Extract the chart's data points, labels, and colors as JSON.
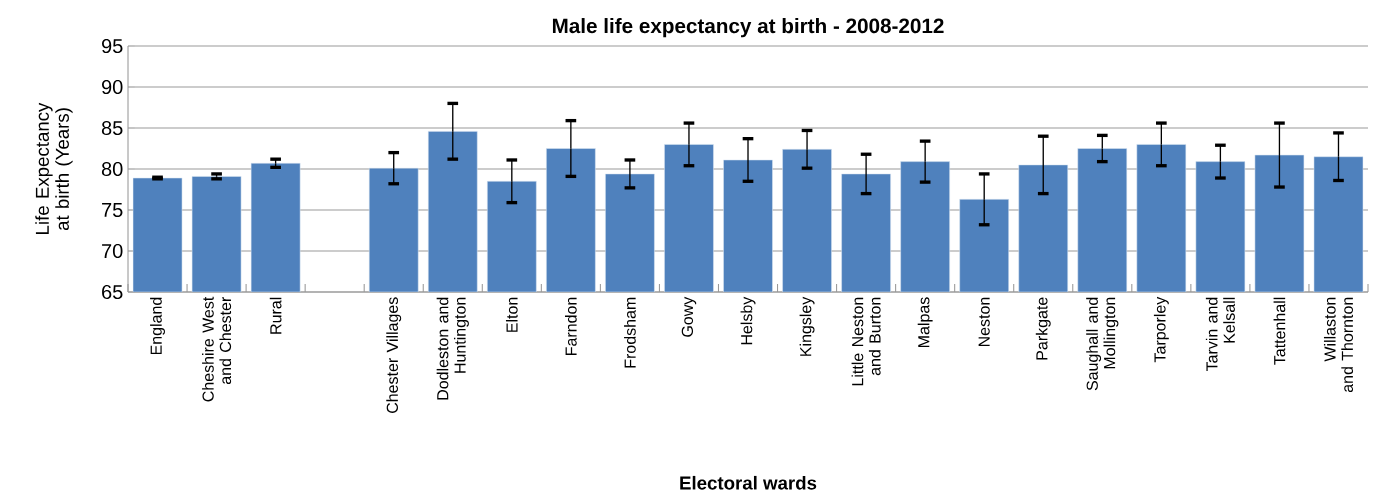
{
  "chart_data": {
    "type": "bar",
    "title": "Male life expectancy at birth - 2008-2012",
    "xlabel": "Electoral wards",
    "ylabel": "Life Expectancy at birth (Years)",
    "categories": [
      "England",
      "Cheshire West and Chester",
      "Rural",
      null,
      "Chester Villages",
      "Dodleston and Huntington",
      "Elton",
      "Farndon",
      "Frodsham",
      "Gowy",
      "Helsby",
      "Kingsley",
      "Little Neston and Burton",
      "Malpas",
      "Neston",
      "Parkgate",
      "Saughall and Mollington",
      "Tarporley",
      "Tarvin and Kelsall",
      "Tattenhall",
      "Willaston and Thornton"
    ],
    "values": [
      78.9,
      79.1,
      80.7,
      null,
      80.1,
      84.6,
      78.5,
      82.5,
      79.4,
      83.0,
      81.1,
      82.4,
      79.4,
      80.9,
      76.3,
      80.5,
      82.5,
      83.0,
      80.9,
      81.7,
      81.5
    ],
    "errors": [
      0.1,
      0.3,
      0.5,
      null,
      1.9,
      3.4,
      2.6,
      3.4,
      1.7,
      2.6,
      2.6,
      2.3,
      2.4,
      2.5,
      3.1,
      3.5,
      1.6,
      2.6,
      2.0,
      3.9,
      2.9
    ],
    "color": "#4f81bd",
    "ylim": [
      65,
      95
    ],
    "yticks": [
      65,
      70,
      75,
      80,
      85,
      90,
      95
    ],
    "grid": "y"
  }
}
